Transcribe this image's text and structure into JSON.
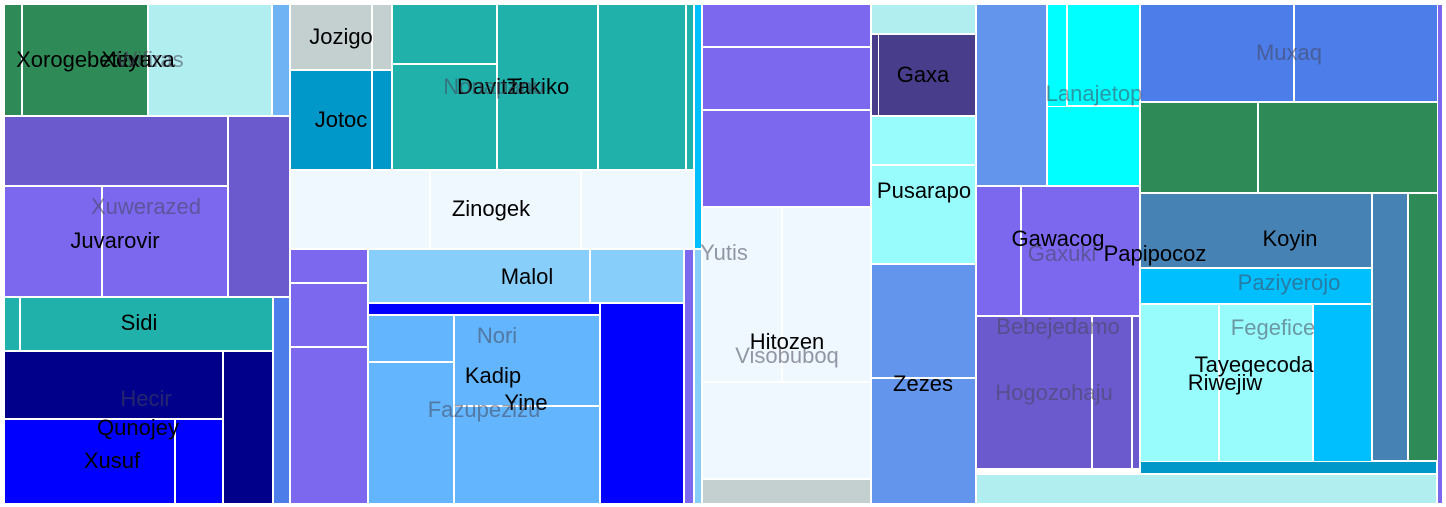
{
  "chart_data": {
    "type": "treemap",
    "title": "",
    "labels": [
      "Xorogebetitxa",
      "Xeyuxa",
      "Wifiras",
      "Xuwerazed",
      "Juvarovir",
      "Sidi",
      "Hecir",
      "Qunojey",
      "Xusuf",
      "Jozigo",
      "Jotoc",
      "Davitzi",
      "Takiko",
      "Nonapanu",
      "Zinogek",
      "Malol",
      "Nori",
      "Kadip",
      "Yine",
      "Fazupezizu",
      "Yutis",
      "Hitozen",
      "Visobuboq",
      "Gaxa",
      "Pusarapo",
      "Zezes",
      "Lanajetop",
      "Gawacog",
      "Gaxuki",
      "Papipocoz",
      "Bebejedamo",
      "Hogozohaju",
      "Muxaq",
      "Koyin",
      "Paziyerojo",
      "Fegefice",
      "Tayeqecoda",
      "Riwejiw"
    ],
    "cells": [
      {
        "color": "#2e8b57",
        "value": 2.6
      },
      {
        "color": "#2e8b57",
        "value": 5.0
      },
      {
        "color": "#b0eef0",
        "value": 4.5
      },
      {
        "color": "#6fb3f5",
        "value": 0.7
      },
      {
        "color": "#6a5acd",
        "value": 9.1
      },
      {
        "color": "#6a5acd",
        "value": 3.4
      },
      {
        "color": "#7b68ee",
        "value": 3.9
      },
      {
        "color": "#7b68ee",
        "value": 5.1
      },
      {
        "color": "#20b2aa",
        "value": 0.5
      },
      {
        "color": "#20b2aa",
        "value": 8.5
      },
      {
        "color": "#4d7de8",
        "value": 0.5
      },
      {
        "color": "#00008b",
        "value": 7.7
      },
      {
        "color": "#00008b",
        "value": 5.9
      },
      {
        "color": "#0000ff",
        "value": 6.0
      },
      {
        "color": "#0000ff",
        "value": 1.9
      },
      {
        "color": "#4d7de8",
        "value": 1.1
      },
      {
        "color": "#c4d0d0",
        "value": 3.0
      },
      {
        "color": "#c4d0d0",
        "value": 0.6
      },
      {
        "color": "#0097c9",
        "value": 3.8
      },
      {
        "color": "#0097c9",
        "value": 0.6
      },
      {
        "color": "#20b2aa",
        "value": 3.8
      },
      {
        "color": "#20b2aa",
        "value": 2.4
      },
      {
        "color": "#20b2aa",
        "value": 4.7
      },
      {
        "color": "#20b2aa",
        "value": 2.7
      },
      {
        "color": "#20b2aa",
        "value": 4.0
      },
      {
        "color": "#00bfff",
        "value": 0.3
      },
      {
        "color": "#6fb3f5",
        "value": 0.3
      },
      {
        "color": "#f0f8ff",
        "value": 4.5
      },
      {
        "color": "#f0f8ff",
        "value": 5.3
      },
      {
        "color": "#f0f8ff",
        "value": 4.7
      },
      {
        "color": "#7b68ee",
        "value": 0.8
      },
      {
        "color": "#7b68ee",
        "value": 1.5
      },
      {
        "color": "#7b68ee",
        "value": 3.7
      },
      {
        "color": "#87cefa",
        "value": 4.3
      },
      {
        "color": "#87cefa",
        "value": 1.9
      },
      {
        "color": "#0000ff",
        "value": 0.6
      },
      {
        "color": "#63b5fe",
        "value": 1.7
      },
      {
        "color": "#63b5fe",
        "value": 4.3
      },
      {
        "color": "#63b5fe",
        "value": 4.2
      },
      {
        "color": "#63b5fe",
        "value": 4.8
      },
      {
        "color": "#0000ff",
        "value": 5.0
      },
      {
        "color": "#7b68ee",
        "value": 0.3
      },
      {
        "color": "#87cefa",
        "value": 1.3
      },
      {
        "color": "#00bfff",
        "value": 0.3
      },
      {
        "color": "#7b68ee",
        "value": 1.6
      },
      {
        "color": "#7b68ee",
        "value": 2.2
      },
      {
        "color": "#7b68ee",
        "value": 3.3
      },
      {
        "color": "#f0f8ff",
        "value": 3.2
      },
      {
        "color": "#f0f8ff",
        "value": 3.5
      },
      {
        "color": "#f0f8ff",
        "value": 3.2
      },
      {
        "color": "#c4d0d0",
        "value": 0.9
      },
      {
        "color": "#b0eef0",
        "value": 0.6
      },
      {
        "color": "#483d8b",
        "value": 1.8
      },
      {
        "color": "#483d8b",
        "value": 0.2
      },
      {
        "color": "#98fcfd",
        "value": 1.0
      },
      {
        "color": "#98fcfd",
        "value": 2.1
      },
      {
        "color": "#6495ed",
        "value": 2.4
      },
      {
        "color": "#6495ed",
        "value": 2.6
      },
      {
        "color": "#6495ed",
        "value": 2.5
      },
      {
        "color": "#00ffff",
        "value": 0.7
      },
      {
        "color": "#00ffff",
        "value": 2.1
      },
      {
        "color": "#00ffff",
        "value": 2.4
      },
      {
        "color": "#7b68ee",
        "value": 1.9
      },
      {
        "color": "#7b68ee",
        "value": 3.0
      },
      {
        "color": "#6a5acd",
        "value": 1.6
      },
      {
        "color": "#6a5acd",
        "value": 3.6
      },
      {
        "color": "#6a5acd",
        "value": 1.1
      },
      {
        "color": "#7b68ee",
        "value": 0.2
      },
      {
        "color": "#b0eef0",
        "value": 2.2
      },
      {
        "color": "#4d7de8",
        "value": 3.9
      },
      {
        "color": "#4d7de8",
        "value": 3.8
      },
      {
        "color": "#2e8b57",
        "value": 2.8
      },
      {
        "color": "#2e8b57",
        "value": 4.3
      },
      {
        "color": "#4682b4",
        "value": 6.6
      },
      {
        "color": "#4682b4",
        "value": 1.0
      },
      {
        "color": "#2e8b57",
        "value": 0.9
      },
      {
        "color": "#00bfff",
        "value": 2.5
      },
      {
        "color": "#98fcfd",
        "value": 2.2
      },
      {
        "color": "#98fcfd",
        "value": 2.6
      },
      {
        "color": "#00bfff",
        "value": 1.4
      },
      {
        "color": "#0097c9",
        "value": 0.9
      },
      {
        "color": "#7b68ee",
        "value": 0.2
      }
    ]
  }
}
